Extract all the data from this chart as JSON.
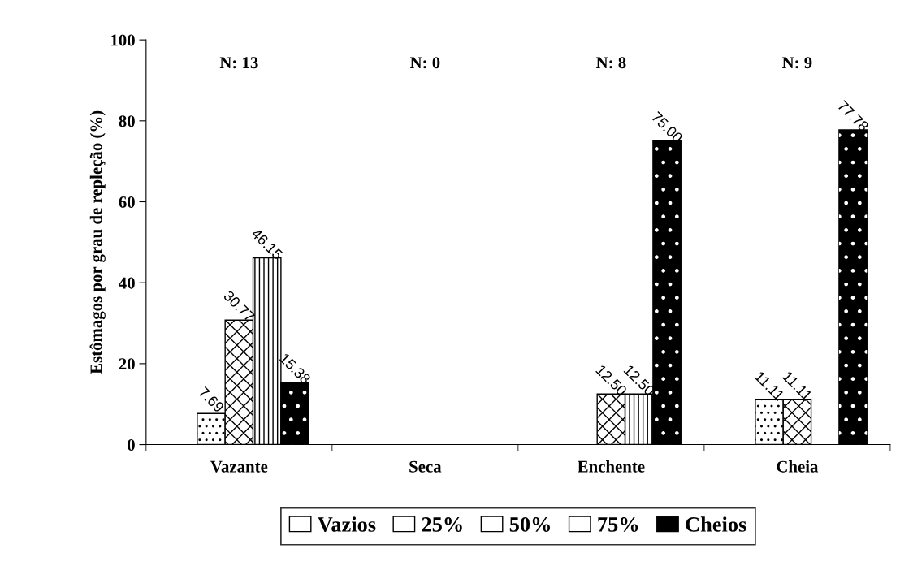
{
  "chart_data": {
    "type": "bar",
    "ylabel": "Estômagos por grau de repleção (%)",
    "categories": [
      "Vazante",
      "Seca",
      "Enchente",
      "Cheia"
    ],
    "series": [
      {
        "name": "Vazios",
        "color": "#ffffff",
        "values": [
          null,
          null,
          null,
          null
        ],
        "value_labels": [
          null,
          null,
          null,
          null
        ]
      },
      {
        "name": "25%",
        "color": "#ffffff",
        "values": [
          7.69,
          null,
          null,
          11.11
        ],
        "value_labels": [
          "7.69",
          null,
          null,
          "11.11"
        ]
      },
      {
        "name": "50%",
        "color": "#ffffff",
        "values": [
          30.77,
          null,
          12.5,
          11.11
        ],
        "value_labels": [
          "30.77",
          null,
          "12.50",
          "11.11"
        ]
      },
      {
        "name": "75%",
        "color": "#ffffff",
        "values": [
          46.15,
          null,
          12.5,
          null
        ],
        "value_labels": [
          "46.15",
          null,
          "12.50",
          null
        ]
      },
      {
        "name": "Cheios",
        "color": "#000000",
        "values": [
          15.38,
          null,
          75.0,
          77.78
        ],
        "value_labels": [
          "15.38",
          null,
          "75.00",
          "77.78"
        ]
      }
    ],
    "annotations": [
      "N: 13",
      "N: 0",
      "N: 8",
      "N: 9"
    ],
    "ylim": [
      0,
      100
    ],
    "yticks": [
      0,
      20,
      40,
      60,
      80,
      100
    ],
    "grid": false,
    "legend": "bottom"
  }
}
